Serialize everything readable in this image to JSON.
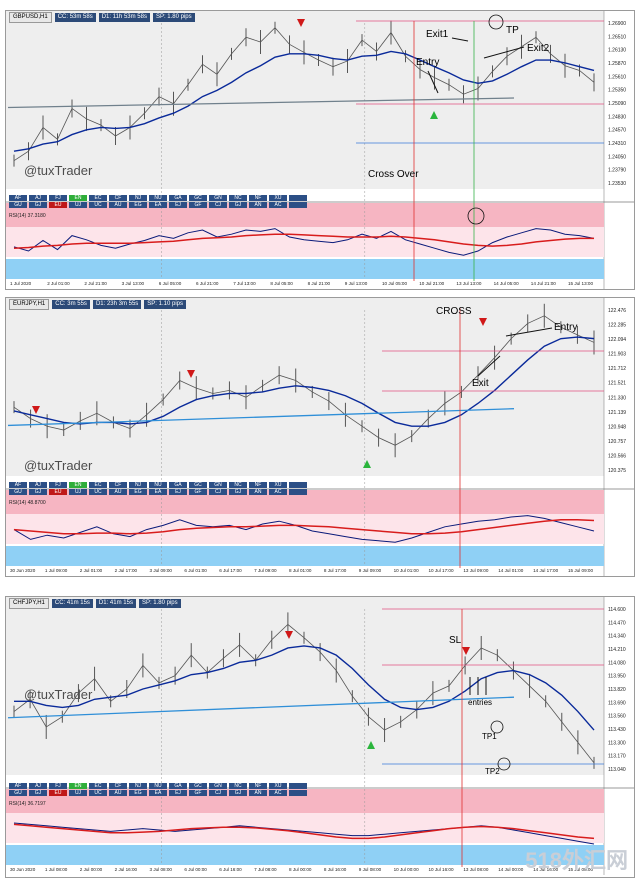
{
  "panels": [
    {
      "symbol": "GBPUSD,H1",
      "timers": [
        "CC: 53m 58s",
        "D1: 11h 53m 58s",
        "SP: 1.80 pips"
      ],
      "brand": "@tuxTrader",
      "annotations": [
        "Exit1",
        "TP",
        "Exit2",
        "Entry",
        "Cross Over"
      ],
      "price_ticks": [
        "1.26900",
        "1.26510",
        "1.26130",
        "1.25870",
        "1.25610",
        "1.25350",
        "1.25090",
        "1.24830",
        "1.24570",
        "1.24310",
        "1.24050",
        "1.23790",
        "1.23530"
      ],
      "time_ticks": [
        "1 Jul 2020",
        "2 Jul 01:00",
        "2 Jul 21:00",
        "3 Jul 13:00",
        "6 Jul 05:00",
        "6 Jul 21:00",
        "7 Jul 13:00",
        "8 Jul 05:00",
        "8 Jul 21:00",
        "9 Jul 13:00",
        "10 Jul 05:00",
        "10 Jul 21:00",
        "13 Jul 13:00",
        "14 Jul 05:00",
        "14 Jul 21:00",
        "15 Jul 13:00"
      ],
      "rsi_label": "RSI(14) 37.3180",
      "tabs": [
        [
          "AF",
          "AJ",
          "FJ",
          "EN",
          "EC",
          "CF",
          "NJ",
          "NU",
          "GA",
          "GC",
          "GN",
          "NC",
          "NF",
          "XU",
          ""
        ],
        [
          "GU",
          "GJ",
          "EU",
          "UJ",
          "UC",
          "AU",
          "EG",
          "EA",
          "EJ",
          "GF",
          "CJ",
          "GJ",
          "AN",
          "AC",
          ""
        ]
      ]
    },
    {
      "symbol": "EURJPY,H1",
      "timers": [
        "CC: 3m 55s",
        "D1: 23h 3m 55s",
        "SP: 1.10 pips"
      ],
      "brand": "@tuxTrader",
      "annotations": [
        "CROSS",
        "Entry",
        "Exit"
      ],
      "price_ticks": [
        "122.476",
        "122.285",
        "122.094",
        "121.903",
        "121.712",
        "121.521",
        "121.330",
        "121.139",
        "120.948",
        "120.757",
        "120.566",
        "120.375"
      ],
      "time_ticks": [
        "30 Jun 2020",
        "1 Jul 09:00",
        "2 Jul 01:00",
        "2 Jul 17:00",
        "3 Jul 09:00",
        "6 Jul 01:00",
        "6 Jul 17:00",
        "7 Jul 09:00",
        "8 Jul 01:00",
        "8 Jul 17:00",
        "9 Jul 09:00",
        "10 Jul 01:00",
        "10 Jul 17:00",
        "13 Jul 09:00",
        "14 Jul 01:00",
        "14 Jul 17:00",
        "15 Jul 09:00"
      ],
      "rsi_label": "RSI(14) 48.8700",
      "tabs": [
        [
          "AF",
          "AJ",
          "FJ",
          "EN",
          "EC",
          "CF",
          "NJ",
          "NU",
          "GA",
          "GC",
          "GN",
          "NC",
          "NF",
          "XU",
          ""
        ],
        [
          "GU",
          "GJ",
          "EU",
          "UJ",
          "UC",
          "AU",
          "EG",
          "EA",
          "EJ",
          "GF",
          "CJ",
          "GJ",
          "AN",
          "AC",
          ""
        ]
      ]
    },
    {
      "symbol": "CHFJPY,H1",
      "timers": [
        "CC: 41m 15s",
        "D1: 41m 15s",
        "SP: 1.80 pips"
      ],
      "brand": "@tuxTrader",
      "annotations": [
        "SL",
        "entries",
        "TP1",
        "TP2"
      ],
      "price_ticks": [
        "114.600",
        "114.470",
        "114.340",
        "114.210",
        "114.080",
        "113.950",
        "113.820",
        "113.690",
        "113.560",
        "113.430",
        "113.300",
        "113.170",
        "113.040"
      ],
      "time_ticks": [
        "30 Jun 2020",
        "1 Jul 08:00",
        "2 Jul 00:00",
        "2 Jul 16:00",
        "3 Jul 08:00",
        "6 Jul 00:00",
        "6 Jul 16:00",
        "7 Jul 08:00",
        "8 Jul 00:00",
        "8 Jul 16:00",
        "9 Jul 08:00",
        "10 Jul 00:00",
        "10 Jul 16:00",
        "13 Jul 08:00",
        "14 Jul 00:00",
        "14 Jul 16:00",
        "15 Jul 08:00"
      ],
      "rsi_label": "RSI(14) 36.7197",
      "tabs": [
        [
          "AF",
          "AJ",
          "FJ",
          "EN",
          "EC",
          "CF",
          "NJ",
          "NU",
          "GA",
          "GC",
          "GN",
          "NC",
          "NF",
          "XU",
          ""
        ],
        [
          "GU",
          "GJ",
          "EU",
          "UJ",
          "UC",
          "AU",
          "EG",
          "EA",
          "EJ",
          "GF",
          "CJ",
          "GJ",
          "AN",
          "AC",
          ""
        ]
      ]
    }
  ],
  "watermark": "518外汇网",
  "colors": {
    "price": "#555555",
    "ma": "#0a2a9a",
    "trend": "#2f8fd8",
    "rsi": "#0a1a7a",
    "rsi_ma": "#d81c1c",
    "band_top": "#f6b5c2",
    "band_bottom": "#8fd0f5",
    "marker_line": "#e03030",
    "green_line": "#36b24a"
  },
  "chart_data": [
    {
      "type": "line",
      "title": "GBPUSD,H1",
      "ylim": [
        1.2353,
        1.269
      ],
      "series": [
        {
          "values": [
            1.24,
            1.242,
            1.247,
            1.2445,
            1.251,
            1.2488,
            1.2475,
            1.2452,
            1.247,
            1.25,
            1.2535,
            1.252,
            1.256,
            1.2603,
            1.2582,
            1.2625,
            1.266,
            1.265,
            1.268,
            1.2645,
            1.2628,
            1.2612,
            1.2598,
            1.261,
            1.2654,
            1.263,
            1.267,
            1.262,
            1.2592,
            1.2575,
            1.256,
            1.254,
            1.2552,
            1.2588,
            1.262,
            1.264,
            1.266,
            1.2625,
            1.26,
            1.259,
            1.2565
          ]
        },
        {
          "values": [
            1.242,
            1.2425,
            1.2435,
            1.244,
            1.2455,
            1.2465,
            1.247,
            1.2468,
            1.247,
            1.2478,
            1.249,
            1.25,
            1.2515,
            1.2535,
            1.2548,
            1.2565,
            1.2585,
            1.26,
            1.2618,
            1.2625,
            1.2625,
            1.2622,
            1.2615,
            1.2612,
            1.262,
            1.2622,
            1.263,
            1.2625,
            1.2612,
            1.2598,
            1.2585,
            1.257,
            1.2563,
            1.2568,
            1.2582,
            1.2598,
            1.2612,
            1.2612,
            1.2606,
            1.2598,
            1.259
          ]
        },
        {
          "values": [
            1.2512,
            1.2532
          ]
        },
        {
          "values": [
            46,
            40,
            55,
            42,
            62,
            56,
            48,
            44,
            50,
            55,
            62,
            58,
            66,
            70,
            60,
            64,
            70,
            68,
            72,
            60,
            56,
            54,
            52,
            56,
            64,
            58,
            68,
            56,
            50,
            44,
            38,
            34,
            40,
            52,
            60,
            66,
            72,
            70,
            64,
            62,
            58
          ]
        },
        {
          "values": [
            44,
            45,
            47,
            48,
            50,
            51,
            51,
            51,
            51,
            52,
            53,
            54,
            56,
            58,
            59,
            60,
            62,
            63,
            64,
            64,
            63,
            62,
            61,
            60,
            60,
            60,
            61,
            60,
            58,
            56,
            53,
            50,
            48,
            47,
            48,
            50,
            53,
            55,
            57,
            58,
            58
          ]
        }
      ]
    },
    {
      "type": "line",
      "title": "EURJPY,H1",
      "ylim": [
        120.375,
        122.476
      ],
      "series": [
        {
          "values": [
            121.2,
            121.05,
            120.95,
            120.9,
            121.02,
            121.12,
            121.0,
            120.92,
            121.1,
            121.3,
            121.55,
            121.45,
            121.38,
            121.42,
            121.33,
            121.48,
            121.62,
            121.55,
            121.4,
            121.28,
            121.1,
            120.95,
            120.8,
            120.7,
            120.82,
            121.05,
            121.25,
            121.4,
            121.62,
            121.85,
            122.1,
            122.3,
            122.4,
            122.25,
            122.15,
            122.05
          ]
        },
        {
          "values": [
            121.15,
            121.1,
            121.05,
            121.0,
            120.98,
            121.0,
            121.0,
            120.98,
            121.0,
            121.08,
            121.2,
            121.3,
            121.35,
            121.38,
            121.38,
            121.4,
            121.45,
            121.48,
            121.46,
            121.42,
            121.35,
            121.25,
            121.12,
            121.0,
            120.95,
            120.95,
            121.0,
            121.1,
            121.25,
            121.42,
            121.62,
            121.82,
            122.0,
            122.1,
            122.12,
            122.1
          ]
        },
        {
          "values": [
            120.96,
            121.18
          ]
        },
        {
          "values": [
            52,
            38,
            44,
            40,
            48,
            56,
            46,
            42,
            52,
            58,
            66,
            58,
            56,
            58,
            52,
            60,
            64,
            58,
            50,
            46,
            42,
            38,
            36,
            34,
            40,
            48,
            56,
            60,
            64,
            66,
            70,
            72,
            68,
            62,
            56,
            50
          ]
        },
        {
          "values": [
            52,
            50,
            48,
            46,
            46,
            47,
            47,
            46,
            47,
            49,
            52,
            54,
            55,
            56,
            56,
            57,
            58,
            58,
            57,
            56,
            54,
            52,
            50,
            48,
            46,
            46,
            47,
            49,
            52,
            55,
            58,
            61,
            64,
            66,
            66,
            65
          ]
        }
      ]
    },
    {
      "type": "line",
      "title": "CHFJPY,H1",
      "ylim": [
        113.04,
        114.6
      ],
      "series": [
        {
          "values": [
            113.6,
            113.72,
            113.45,
            113.55,
            113.78,
            113.92,
            113.7,
            113.82,
            114.05,
            113.88,
            113.95,
            114.15,
            113.98,
            114.12,
            114.25,
            114.1,
            114.3,
            114.45,
            114.32,
            114.18,
            114.0,
            113.75,
            113.55,
            113.42,
            113.5,
            113.62,
            113.78,
            113.85,
            114.05,
            114.22,
            114.15,
            114.0,
            113.85,
            113.7,
            113.5,
            113.3,
            113.1
          ]
        },
        {
          "values": [
            113.7,
            113.7,
            113.66,
            113.64,
            113.66,
            113.72,
            113.74,
            113.76,
            113.82,
            113.86,
            113.9,
            113.96,
            113.98,
            114.02,
            114.08,
            114.1,
            114.15,
            114.22,
            114.24,
            114.22,
            114.15,
            114.02,
            113.86,
            113.72,
            113.64,
            113.62,
            113.64,
            113.7,
            113.8,
            113.92,
            113.98,
            114.0,
            113.96,
            113.88,
            113.76,
            113.6,
            113.42
          ]
        },
        {
          "values": [
            113.54,
            113.74
          ]
        },
        {
          "values": [
            60,
            58,
            56,
            54,
            52,
            50,
            48,
            50,
            52,
            50,
            48,
            50,
            52,
            54,
            56,
            54,
            52,
            50,
            48,
            46,
            44,
            42,
            42,
            44,
            46,
            48,
            50,
            52,
            54,
            56,
            54,
            50,
            46,
            42,
            38,
            34,
            30
          ]
        },
        {
          "values": [
            58,
            56,
            54,
            52,
            50,
            48,
            46,
            46,
            47,
            48,
            50,
            52,
            53,
            54,
            54,
            53,
            51,
            49,
            46,
            43,
            40,
            38,
            38,
            40,
            43,
            46,
            49,
            52,
            54,
            55,
            54,
            52,
            49,
            46,
            43,
            40,
            38
          ]
        }
      ]
    }
  ]
}
